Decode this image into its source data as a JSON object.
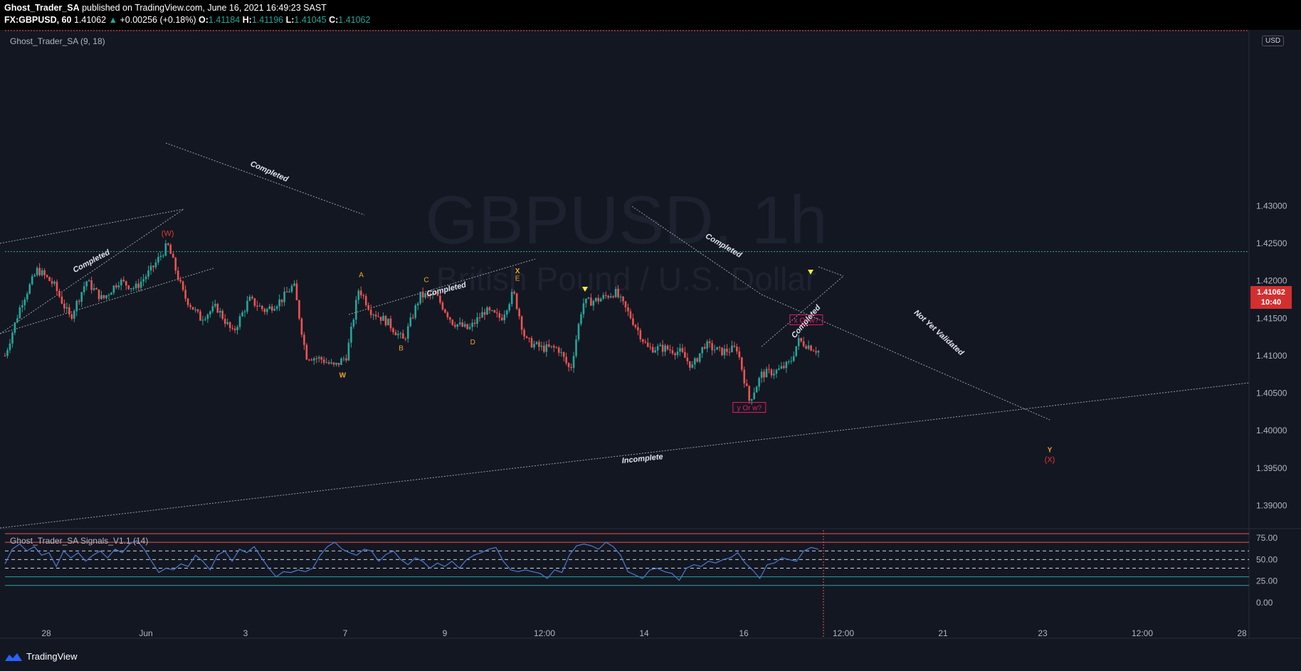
{
  "header": {
    "author": "Ghost_Trader_SA",
    "published_text": " published on TradingView.com, June 16, 2021 16:49:23 SAST",
    "symbol": "FX:GBPUSD, 60",
    "last": "1.41062",
    "change_arrow": "▲",
    "change": "+0.00256 (+0.18%)",
    "o_label": "O:",
    "o_val": "1.41184",
    "h_label": "H:",
    "h_val": "1.41196",
    "l_label": "L:",
    "l_val": "1.41045",
    "c_label": "C:",
    "c_val": "1.41062"
  },
  "main_indicator_label": "Ghost_Trader_SA (9, 18)",
  "sub_indicator_label": "Ghost_Trader_SA Signals_V1.1 (14)",
  "watermark": {
    "symbol": "GBPUSD, 1h",
    "name": "British Pound / U.S. Dollar"
  },
  "price_tag": {
    "price": "1.41062",
    "countdown": "10:40"
  },
  "currency_badge": "USD",
  "footer_brand": "TradingView",
  "colors": {
    "background": "#131722",
    "up_candle": "#26a69a",
    "down_candle": "#ef5350",
    "oscillator_line": "#4a7bd0",
    "price_tag": "#d32f2f",
    "wave_label_red": "#e53935",
    "wave_label_orange": "#f5a623"
  },
  "chart_data": [
    {
      "type": "candlestick",
      "title": "GBPUSD, 1h",
      "y_ticks": [
        "1.43000",
        "1.42500",
        "1.42000",
        "1.41500",
        "1.41000",
        "1.40500",
        "1.40000",
        "1.39500",
        "1.39000"
      ],
      "x_ticks": [
        "28",
        "Jun",
        "3",
        "7",
        "9",
        "12:00",
        "14",
        "16",
        "12:00",
        "21",
        "23",
        "12:00",
        "28"
      ],
      "ylim": [
        1.387,
        1.4535
      ],
      "close_path": [
        {
          "x": 0.0,
          "y": 1.41
        },
        {
          "x": 0.02,
          "y": 1.417
        },
        {
          "x": 0.04,
          "y": 1.4215
        },
        {
          "x": 0.06,
          "y": 1.4195
        },
        {
          "x": 0.08,
          "y": 1.415
        },
        {
          "x": 0.1,
          "y": 1.42
        },
        {
          "x": 0.12,
          "y": 1.4175
        },
        {
          "x": 0.14,
          "y": 1.42
        },
        {
          "x": 0.16,
          "y": 1.419
        },
        {
          "x": 0.18,
          "y": 1.4215
        },
        {
          "x": 0.2,
          "y": 1.4248
        },
        {
          "x": 0.22,
          "y": 1.418
        },
        {
          "x": 0.24,
          "y": 1.415
        },
        {
          "x": 0.26,
          "y": 1.4165
        },
        {
          "x": 0.28,
          "y": 1.413
        },
        {
          "x": 0.3,
          "y": 1.4175
        },
        {
          "x": 0.32,
          "y": 1.416
        },
        {
          "x": 0.34,
          "y": 1.4175
        },
        {
          "x": 0.355,
          "y": 1.4195
        },
        {
          "x": 0.37,
          "y": 1.41
        },
        {
          "x": 0.39,
          "y": 1.4095
        },
        {
          "x": 0.405,
          "y": 1.4085
        },
        {
          "x": 0.42,
          "y": 1.41
        },
        {
          "x": 0.435,
          "y": 1.419
        },
        {
          "x": 0.45,
          "y": 1.416
        },
        {
          "x": 0.47,
          "y": 1.4145
        },
        {
          "x": 0.49,
          "y": 1.412
        },
        {
          "x": 0.51,
          "y": 1.418
        },
        {
          "x": 0.53,
          "y": 1.418
        },
        {
          "x": 0.55,
          "y": 1.4145
        },
        {
          "x": 0.57,
          "y": 1.4135
        },
        {
          "x": 0.59,
          "y": 1.416
        },
        {
          "x": 0.61,
          "y": 1.415
        },
        {
          "x": 0.625,
          "y": 1.4185
        },
        {
          "x": 0.64,
          "y": 1.412
        },
        {
          "x": 0.66,
          "y": 1.411
        },
        {
          "x": 0.68,
          "y": 1.411
        },
        {
          "x": 0.695,
          "y": 1.408
        },
        {
          "x": 0.71,
          "y": 1.417
        },
        {
          "x": 0.73,
          "y": 1.4175
        },
        {
          "x": 0.75,
          "y": 1.4185
        },
        {
          "x": 0.77,
          "y": 1.415
        },
        {
          "x": 0.79,
          "y": 1.411
        },
        {
          "x": 0.81,
          "y": 1.411
        },
        {
          "x": 0.83,
          "y": 1.4105
        },
        {
          "x": 0.845,
          "y": 1.4085
        },
        {
          "x": 0.86,
          "y": 1.4115
        },
        {
          "x": 0.88,
          "y": 1.4105
        },
        {
          "x": 0.9,
          "y": 1.411
        },
        {
          "x": 0.915,
          "y": 1.404
        },
        {
          "x": 0.93,
          "y": 1.4075
        },
        {
          "x": 0.95,
          "y": 1.408
        },
        {
          "x": 0.965,
          "y": 1.409
        },
        {
          "x": 0.975,
          "y": 1.412
        },
        {
          "x": 0.985,
          "y": 1.4115
        },
        {
          "x": 1.0,
          "y": 1.41062
        }
      ],
      "wave_labels": [
        {
          "text": "(W)",
          "color": "red",
          "time": 0.2,
          "price": 1.426
        },
        {
          "text": "W",
          "color": "orange",
          "time": 0.415,
          "price": 1.4071
        },
        {
          "text": "A",
          "color": "orange",
          "time": 0.438,
          "price": 1.4205
        },
        {
          "text": "B",
          "color": "orange",
          "time": 0.487,
          "price": 1.4107
        },
        {
          "text": "C",
          "color": "orange",
          "time": 0.518,
          "price": 1.4198
        },
        {
          "text": "D",
          "color": "orange",
          "time": 0.575,
          "price": 1.4115
        },
        {
          "text": "X",
          "color": "orange",
          "time": 0.63,
          "price": 1.421
        },
        {
          "text": "E",
          "color": "orange",
          "time": 0.63,
          "price": 1.42
        },
        {
          "text": "Y",
          "color": "orange",
          "time": 1.26,
          "price": 1.3971
        },
        {
          "text": "(X)",
          "color": "red",
          "time": 1.26,
          "price": 1.3958
        }
      ],
      "box_labels": [
        {
          "text": "x Or w?",
          "time": 0.985,
          "price": 1.4147
        },
        {
          "text": "y Or w?",
          "time": 0.915,
          "price": 1.403
        }
      ],
      "trendline_labels": [
        "Completed",
        "Completed",
        "Completed",
        "Completed",
        "Completed",
        "Not Yet Validated",
        "Incomplete"
      ],
      "horizontal_level": 1.4239
    },
    {
      "type": "line",
      "title": "Ghost_Trader_SA Signals_V1.1 (14)",
      "y_ticks": [
        "75.00",
        "50.00",
        "25.00",
        "0.00"
      ],
      "ylim": [
        0,
        80
      ],
      "levels": [
        80,
        70,
        60,
        50,
        40,
        30,
        20
      ],
      "series": [
        {
          "name": "",
          "values": [
            45,
            62,
            68,
            60,
            65,
            55,
            58,
            42,
            60,
            52,
            58,
            48,
            55,
            60,
            52,
            62,
            58,
            68,
            72,
            62,
            48,
            35,
            40,
            38,
            45,
            42,
            55,
            48,
            38,
            55,
            60,
            48,
            62,
            58,
            65,
            52,
            40,
            30,
            36,
            35,
            38,
            36,
            40,
            55,
            65,
            70,
            62,
            58,
            55,
            62,
            60,
            48,
            56,
            60,
            50,
            44,
            52,
            48,
            40,
            46,
            42,
            48,
            40,
            50,
            55,
            58,
            62,
            64,
            48,
            38,
            36,
            38,
            36,
            34,
            28,
            38,
            35,
            55,
            66,
            68,
            66,
            62,
            70,
            65,
            55,
            36,
            32,
            28,
            38,
            40,
            36,
            34,
            26,
            40,
            44,
            42,
            48,
            46,
            50,
            52,
            58,
            46,
            38,
            28,
            44,
            46,
            52,
            50,
            48,
            60,
            64,
            62
          ]
        }
      ]
    }
  ]
}
